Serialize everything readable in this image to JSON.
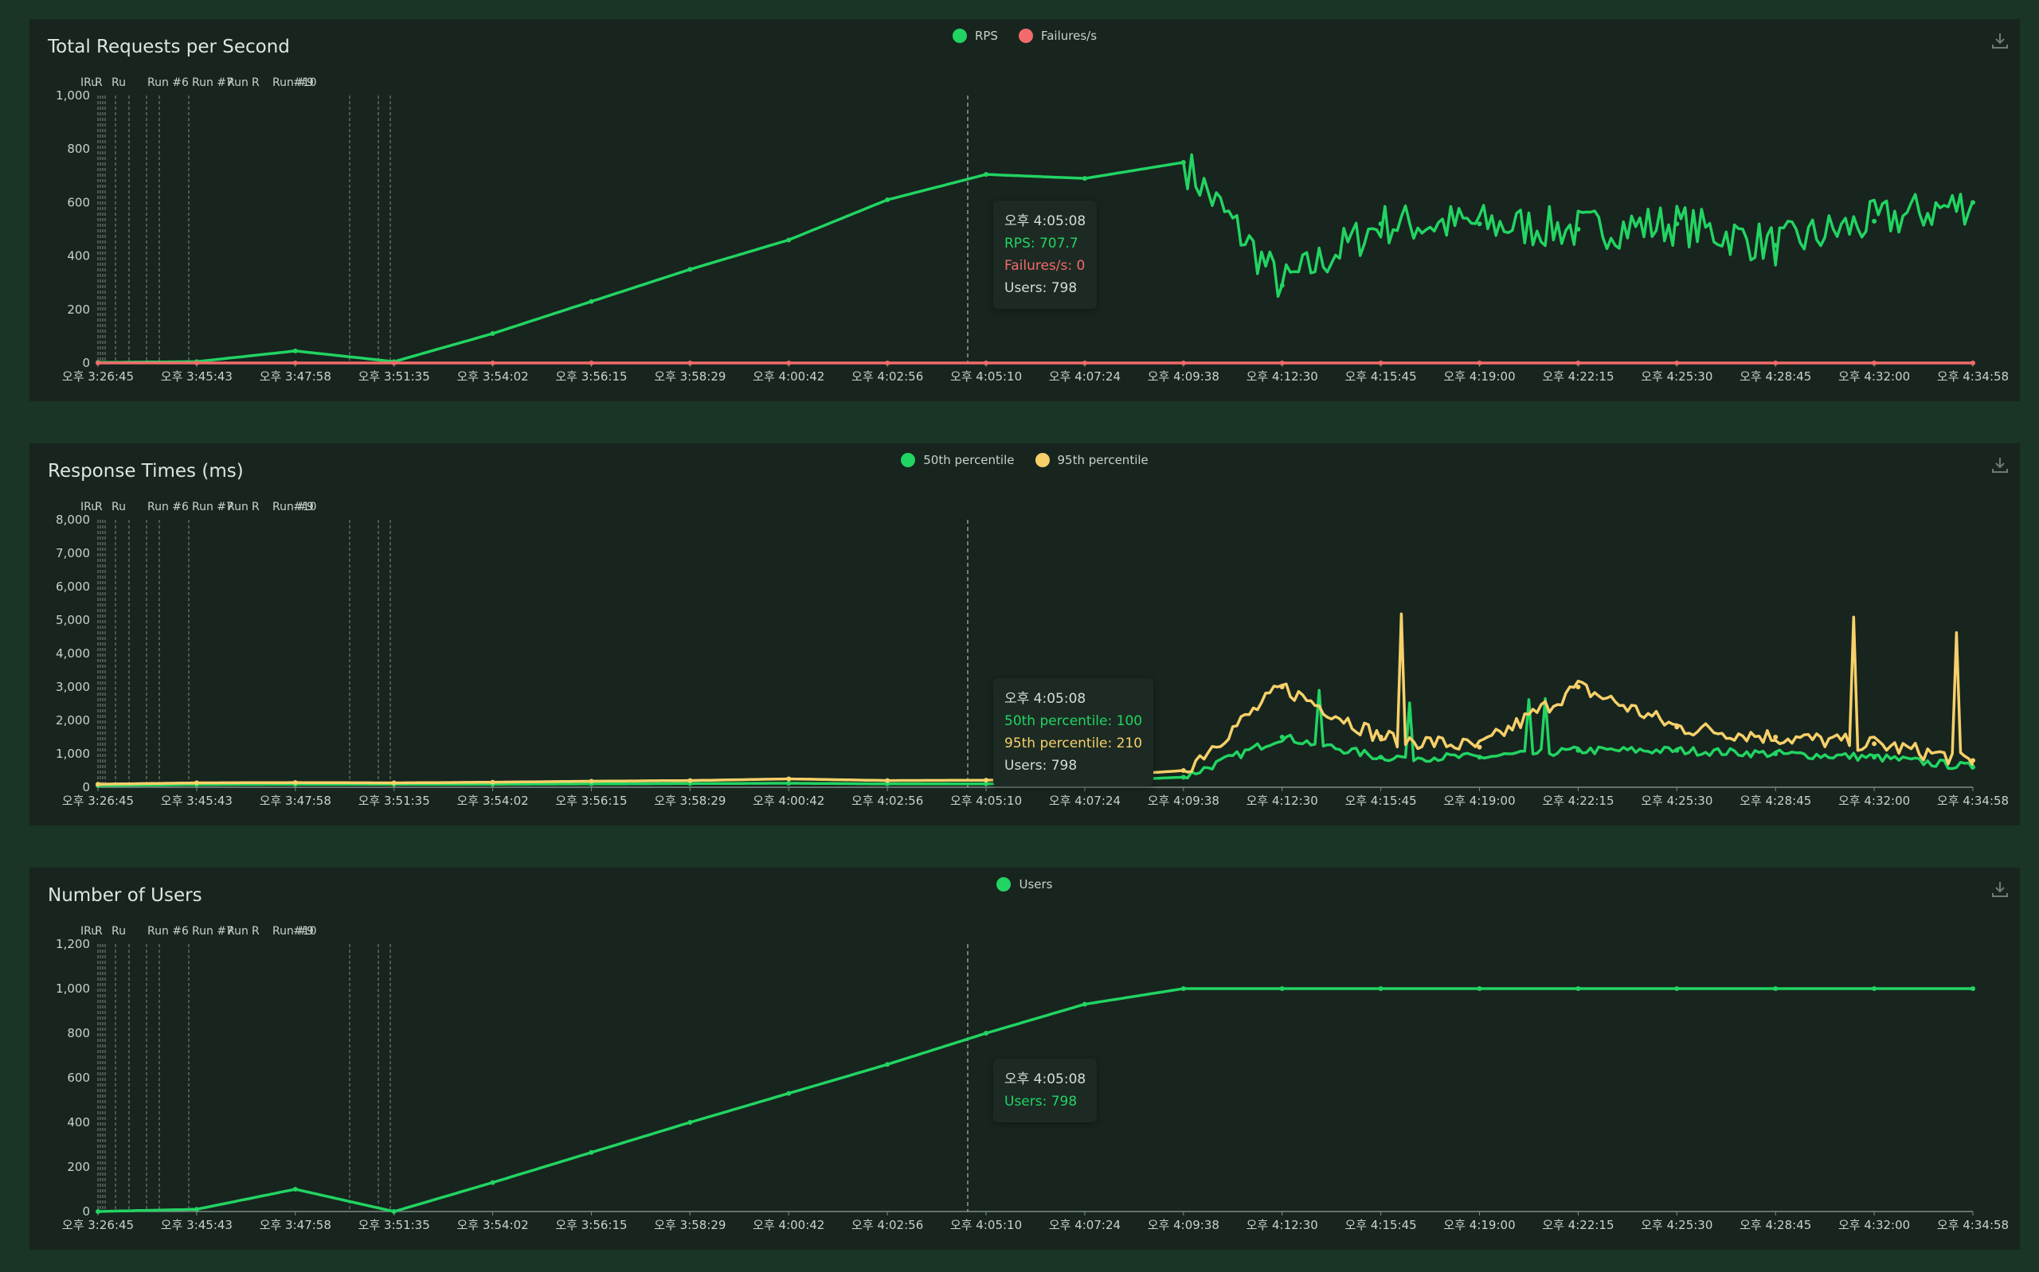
{
  "colors": {
    "rps": "#22d462",
    "failures": "#f26b6b",
    "p50": "#22d462",
    "p95": "#f7d06a",
    "users": "#22d462",
    "grid": "#7f8d86"
  },
  "x_ticks": [
    "오후 3:26:45",
    "오후 3:45:43",
    "오후 3:47:58",
    "오후 3:51:35",
    "오후 3:54:02",
    "오후 3:56:15",
    "오후 3:58:29",
    "오후 4:00:42",
    "오후 4:02:56",
    "오후 4:05:10",
    "오후 4:07:24",
    "오후 4:09:38",
    "오후 4:12:30",
    "오후 4:15:45",
    "오후 4:19:00",
    "오후 4:22:15",
    "오후 4:25:30",
    "오후 4:28:45",
    "오후 4:32:00",
    "오후 4:34:58"
  ],
  "run_labels": [
    "IRu",
    "R",
    "Ru",
    "Run #6",
    "Run #7",
    "Run",
    "R",
    "Run #9",
    "#10"
  ],
  "charts": [
    {
      "title": "Total Requests per Second",
      "legend": [
        {
          "name": "RPS",
          "color": "#22d462"
        },
        {
          "name": "Failures/s",
          "color": "#f26b6b"
        }
      ],
      "y_ticks": [
        "0",
        "200",
        "400",
        "600",
        "800",
        "1,000"
      ],
      "ylim": [
        0,
        1000
      ],
      "tooltip": {
        "time": "오후 4:05:08",
        "lines": [
          {
            "text": "RPS: 707.7",
            "color": "#22d462"
          },
          {
            "text": "Failures/s: 0",
            "color": "#f26b6b"
          },
          {
            "text": "Users: 798",
            "color": "#d6dcd8"
          }
        ]
      }
    },
    {
      "title": "Response Times (ms)",
      "legend": [
        {
          "name": "50th percentile",
          "color": "#22d462"
        },
        {
          "name": "95th percentile",
          "color": "#f7d06a"
        }
      ],
      "y_ticks": [
        "0",
        "1,000",
        "2,000",
        "3,000",
        "4,000",
        "5,000",
        "6,000",
        "7,000",
        "8,000"
      ],
      "ylim": [
        0,
        8000
      ],
      "tooltip": {
        "time": "오후 4:05:08",
        "lines": [
          {
            "text": "50th percentile: 100",
            "color": "#22d462"
          },
          {
            "text": "95th percentile: 210",
            "color": "#f7d06a"
          },
          {
            "text": "Users: 798",
            "color": "#d6dcd8"
          }
        ]
      }
    },
    {
      "title": "Number of Users",
      "legend": [
        {
          "name": "Users",
          "color": "#22d462"
        }
      ],
      "y_ticks": [
        "0",
        "200",
        "400",
        "600",
        "800",
        "1,000",
        "1,200"
      ],
      "ylim": [
        0,
        1200
      ],
      "tooltip": {
        "time": "오후 4:05:08",
        "lines": [
          {
            "text": "Users: 798",
            "color": "#22d462"
          }
        ]
      }
    }
  ],
  "chart_data": [
    {
      "type": "line",
      "title": "Total Requests per Second",
      "x": [
        "오후 3:26:45",
        "오후 3:45:43",
        "오후 3:47:58",
        "오후 3:51:35",
        "오후 3:54:02",
        "오후 3:56:15",
        "오후 3:58:29",
        "오후 4:00:42",
        "오후 4:02:56",
        "오후 4:05:10",
        "오후 4:07:24",
        "오후 4:09:38",
        "오후 4:12:30",
        "오후 4:15:45",
        "오후 4:19:00",
        "오후 4:22:15",
        "오후 4:25:30",
        "오후 4:28:45",
        "오후 4:32:00",
        "오후 4:34:58"
      ],
      "ylim": [
        0,
        1000
      ],
      "series": [
        {
          "name": "RPS",
          "values": [
            2,
            5,
            45,
            5,
            110,
            230,
            350,
            460,
            610,
            705,
            690,
            750,
            290,
            520,
            520,
            500,
            520,
            440,
            530,
            600
          ]
        },
        {
          "name": "Failures/s",
          "values": [
            0,
            0,
            0,
            0,
            0,
            0,
            0,
            0,
            0,
            0,
            0,
            0,
            0,
            0,
            0,
            0,
            0,
            0,
            0,
            0
          ]
        }
      ],
      "legend_position": "top-center"
    },
    {
      "type": "line",
      "title": "Response Times (ms)",
      "x": [
        "오후 3:26:45",
        "오후 3:45:43",
        "오후 3:47:58",
        "오후 3:51:35",
        "오후 3:54:02",
        "오후 3:56:15",
        "오후 3:58:29",
        "오후 4:00:42",
        "오후 4:02:56",
        "오후 4:05:10",
        "오후 4:07:24",
        "오후 4:09:38",
        "오후 4:12:30",
        "오후 4:15:45",
        "오후 4:19:00",
        "오후 4:22:15",
        "오후 4:25:30",
        "오후 4:28:45",
        "오후 4:32:00",
        "오후 4:34:58"
      ],
      "ylim": [
        0,
        8000
      ],
      "series": [
        {
          "name": "50th percentile",
          "values": [
            50,
            80,
            90,
            90,
            90,
            100,
            110,
            120,
            100,
            100,
            180,
            300,
            1500,
            900,
            900,
            1100,
            1100,
            1000,
            900,
            600
          ]
        },
        {
          "name": "95th percentile",
          "values": [
            90,
            130,
            140,
            130,
            150,
            180,
            200,
            250,
            200,
            210,
            300,
            500,
            3000,
            1500,
            1200,
            3000,
            1800,
            1500,
            1300,
            800
          ]
        }
      ],
      "legend_position": "top-center"
    },
    {
      "type": "line",
      "title": "Number of Users",
      "x": [
        "오후 3:26:45",
        "오후 3:45:43",
        "오후 3:47:58",
        "오후 3:51:35",
        "오후 3:54:02",
        "오후 3:56:15",
        "오후 3:58:29",
        "오후 4:00:42",
        "오후 4:02:56",
        "오후 4:05:10",
        "오후 4:07:24",
        "오후 4:09:38",
        "오후 4:12:30",
        "오후 4:15:45",
        "오후 4:19:00",
        "오후 4:22:15",
        "오후 4:25:30",
        "오후 4:28:45",
        "오후 4:32:00",
        "오후 4:34:58"
      ],
      "ylim": [
        0,
        1200
      ],
      "series": [
        {
          "name": "Users",
          "values": [
            0,
            10,
            100,
            0,
            130,
            265,
            400,
            530,
            660,
            800,
            930,
            1000,
            1000,
            1000,
            1000,
            1000,
            1000,
            1000,
            1000,
            1000
          ]
        }
      ],
      "legend_position": "top-center"
    }
  ]
}
